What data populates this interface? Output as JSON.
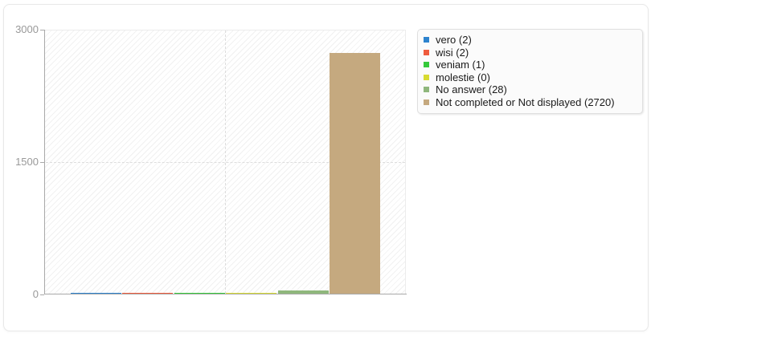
{
  "chart_data": {
    "type": "bar",
    "title": "",
    "categories": [
      "vero",
      "wisi",
      "veniam",
      "molestie",
      "No answer",
      "Not completed or Not displayed"
    ],
    "values": [
      2,
      2,
      1,
      0,
      28,
      2720
    ],
    "bar_colors": [
      "#2d83ce",
      "#ef5b3d",
      "#35c93a",
      "#d8db31",
      "#8fb77c",
      "#c5a97f"
    ],
    "ylim": [
      0,
      3000
    ],
    "yticks": [
      0,
      1500,
      3000
    ],
    "ytick_labels": [
      "0",
      "1500",
      "3000"
    ],
    "grid": "dashed horizontal gridline at 1500, dashed vertical gridline at plot center",
    "hatch_background": true,
    "legend_position": "top-right"
  },
  "legend": {
    "items": [
      {
        "label": "vero (2)",
        "color": "#2d83ce"
      },
      {
        "label": "wisi (2)",
        "color": "#ef5b3d"
      },
      {
        "label": "veniam (1)",
        "color": "#35c93a"
      },
      {
        "label": "molestie (0)",
        "color": "#d8db31"
      },
      {
        "label": "No answer (28)",
        "color": "#8fb77c"
      },
      {
        "label": "Not completed or Not displayed (2720)",
        "color": "#c5a97f"
      }
    ]
  },
  "colors": {
    "axis": "#a9a9a9",
    "tick_label": "#999999",
    "gridline": "#dddddd",
    "card_border": "#e8e8e8",
    "legend_background": "#fbfbfb",
    "legend_border": "#dfdfdf"
  }
}
